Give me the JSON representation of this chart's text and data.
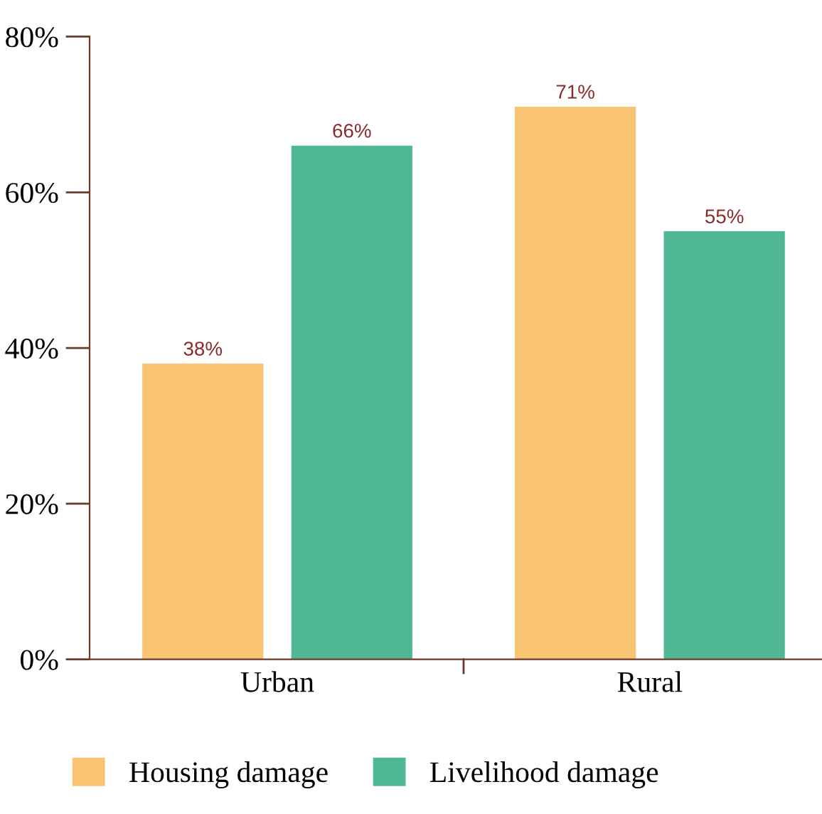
{
  "chart_data": {
    "type": "bar",
    "categories": [
      "Urban",
      "Rural"
    ],
    "series": [
      {
        "name": "Housing damage",
        "color": "#f9c374",
        "values": [
          38,
          71
        ],
        "value_labels": [
          "38%",
          "71%"
        ]
      },
      {
        "name": "Livelihood damage",
        "color": "#4fb793",
        "values": [
          66,
          55
        ],
        "value_labels": [
          "66%",
          "55%"
        ]
      }
    ],
    "ylim": [
      0,
      80
    ],
    "yticks": [
      {
        "value": 0,
        "label": "0%"
      },
      {
        "value": 20,
        "label": "20%"
      },
      {
        "value": 40,
        "label": "40%"
      },
      {
        "value": 60,
        "label": "60%"
      },
      {
        "value": 80,
        "label": "80%"
      }
    ],
    "grid": false,
    "legend": "bottom"
  }
}
